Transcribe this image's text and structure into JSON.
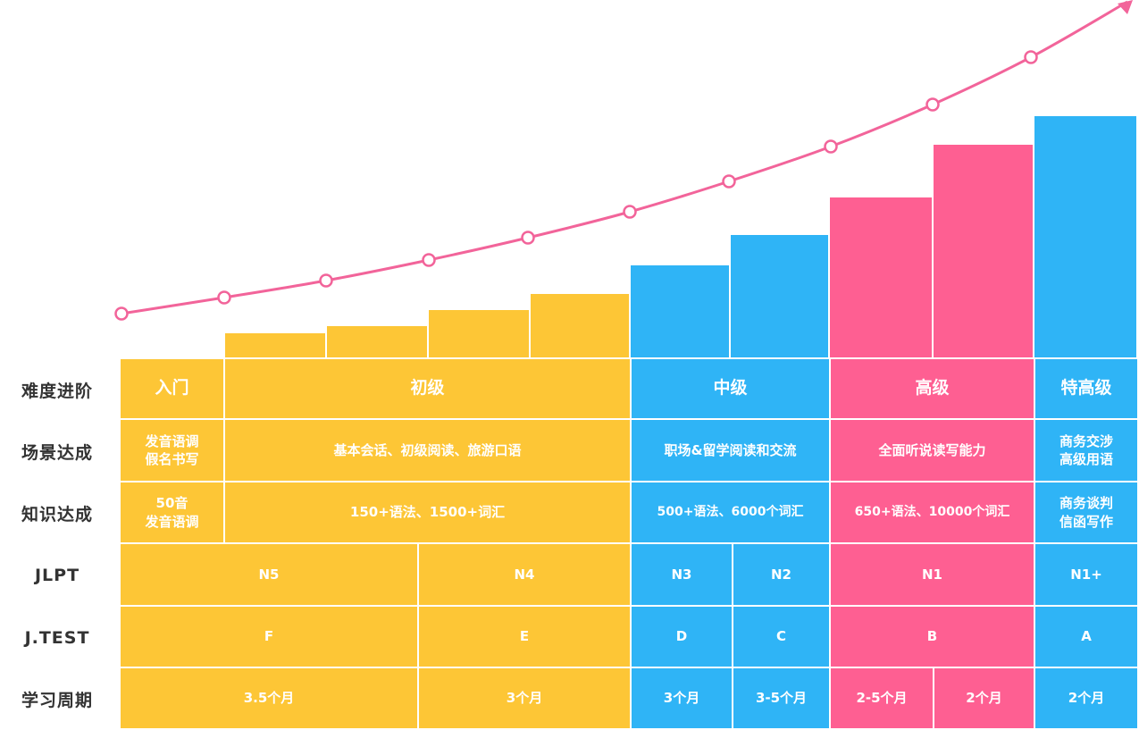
{
  "colors": {
    "yellow": "#FDC636",
    "blue": "#2FB4F6",
    "pink": "#FE5F92",
    "curve": "#F2649A",
    "label": "#333333"
  },
  "chart_data": {
    "type": "bar",
    "title": "",
    "xlabel": "",
    "ylabel": "",
    "bars": [
      {
        "value": 0,
        "color": "yellow"
      },
      {
        "value": 27,
        "color": "yellow"
      },
      {
        "value": 35,
        "color": "yellow"
      },
      {
        "value": 53,
        "color": "yellow"
      },
      {
        "value": 71,
        "color": "yellow"
      },
      {
        "value": 103,
        "color": "blue"
      },
      {
        "value": 137,
        "color": "blue"
      },
      {
        "value": 179,
        "color": "pink"
      },
      {
        "value": 238,
        "color": "pink"
      },
      {
        "value": 270,
        "color": "blue"
      }
    ],
    "curve_points": [
      0,
      18,
      37,
      60,
      85,
      114,
      148,
      187,
      234,
      287
    ],
    "curve_arrow": true
  },
  "rows": [
    {
      "label": "难度进阶"
    },
    {
      "label": "场景达成"
    },
    {
      "label": "知识达成"
    },
    {
      "label": "JLPT"
    },
    {
      "label": "J.TEST"
    },
    {
      "label": "学习周期"
    }
  ],
  "table": {
    "difficulty": [
      {
        "text": "入门",
        "color": "yellow"
      },
      {
        "text": "初级",
        "color": "yellow"
      },
      {
        "text": "中级",
        "color": "blue"
      },
      {
        "text": "高级",
        "color": "pink"
      },
      {
        "text": "特高级",
        "color": "blue"
      }
    ],
    "scenario": [
      {
        "text": "发音语调\n假名书写",
        "color": "yellow"
      },
      {
        "text": "基本会话、初级阅读、旅游口语",
        "color": "yellow"
      },
      {
        "text": "职场&留学阅读和交流",
        "color": "blue"
      },
      {
        "text": "全面听说读写能力",
        "color": "pink"
      },
      {
        "text": "商务交涉\n高级用语",
        "color": "blue"
      }
    ],
    "knowledge": [
      {
        "text": "50音\n发音语调",
        "color": "yellow"
      },
      {
        "text": "150+语法、1500+词汇",
        "color": "yellow"
      },
      {
        "text": "500+语法、6000个词汇",
        "color": "blue"
      },
      {
        "text": "650+语法、10000个词汇",
        "color": "pink"
      },
      {
        "text": "商务谈判\n信函写作",
        "color": "blue"
      }
    ],
    "jlpt": [
      {
        "text": "N5",
        "color": "yellow"
      },
      {
        "text": "N4",
        "color": "yellow"
      },
      {
        "text": "N3",
        "color": "blue"
      },
      {
        "text": "N2",
        "color": "blue"
      },
      {
        "text": "N1",
        "color": "pink"
      },
      {
        "text": "N1+",
        "color": "blue"
      }
    ],
    "jtest": [
      {
        "text": "F",
        "color": "yellow"
      },
      {
        "text": "E",
        "color": "yellow"
      },
      {
        "text": "D",
        "color": "blue"
      },
      {
        "text": "C",
        "color": "blue"
      },
      {
        "text": "B",
        "color": "pink"
      },
      {
        "text": "A",
        "color": "blue"
      }
    ],
    "period": [
      {
        "text": "3.5个月",
        "color": "yellow"
      },
      {
        "text": "3个月",
        "color": "yellow"
      },
      {
        "text": "3个月",
        "color": "blue"
      },
      {
        "text": "3-5个月",
        "color": "blue"
      },
      {
        "text": "2-5个月",
        "color": "pink"
      },
      {
        "text": "2个月",
        "color": "pink"
      },
      {
        "text": "2个月",
        "color": "blue"
      }
    ]
  }
}
